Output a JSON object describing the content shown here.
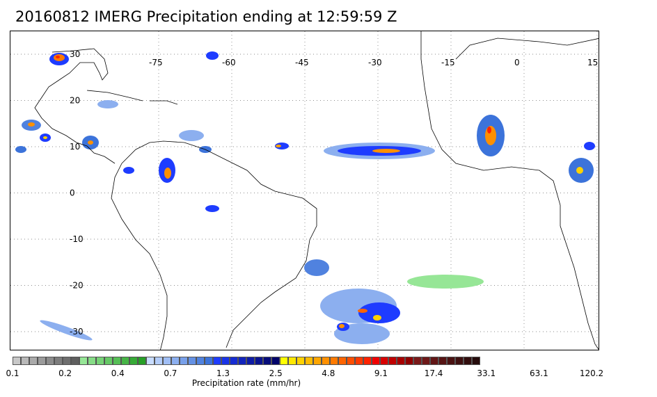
{
  "title": "20160812 IMERG Precipitation ending at 12:59:59 Z",
  "map": {
    "lon_labels": [
      "-75",
      "-60",
      "-45",
      "-30",
      "-15",
      "0",
      "15"
    ],
    "lat_labels": [
      "30",
      "20",
      "10",
      "0",
      "-10",
      "-20",
      "-30"
    ],
    "lon_values": [
      -75,
      -60,
      -45,
      -30,
      -15,
      0,
      15
    ],
    "lat_values": [
      30,
      20,
      10,
      0,
      -10,
      -20,
      -30
    ],
    "land_color": "#ffffff",
    "coastline_color": "#000000",
    "grid": "dotted"
  },
  "colorbar": {
    "title": "Precipitation rate (mm/hr)",
    "tick_labels": [
      "0.1",
      "0.2",
      "0.4",
      "0.7",
      "1.3",
      "2.5",
      "4.8",
      "9.1",
      "17.4",
      "33.1",
      "63.1",
      "120.2"
    ],
    "colors": [
      "#c8c8c8",
      "#b9b9b9",
      "#aaaaaa",
      "#9b9b9b",
      "#8c8c8c",
      "#7d7d7d",
      "#6e6e6e",
      "#5f5f5f",
      "#96e696",
      "#86dc86",
      "#76d276",
      "#66c866",
      "#56be56",
      "#46b446",
      "#36aa36",
      "#269f26",
      "#c8dcff",
      "#b4cdfa",
      "#a0bef5",
      "#8cafef",
      "#78a0ea",
      "#6491e4",
      "#5082df",
      "#3c73da",
      "#1e3cff",
      "#1a34e8",
      "#162cd2",
      "#1224bc",
      "#0e1ca6",
      "#0a1490",
      "#060c7a",
      "#02046a",
      "#ffff00",
      "#ffe800",
      "#ffd200",
      "#ffbc00",
      "#ffa600",
      "#ff9000",
      "#ff7a00",
      "#ff6400",
      "#ff4e00",
      "#ff3800",
      "#ff2200",
      "#f00000",
      "#d80000",
      "#c00000",
      "#a80000",
      "#900000",
      "#7a1a1a",
      "#6e1818",
      "#621616",
      "#561414",
      "#4a1212",
      "#3e1010",
      "#320e0e",
      "#260c0c"
    ]
  }
}
